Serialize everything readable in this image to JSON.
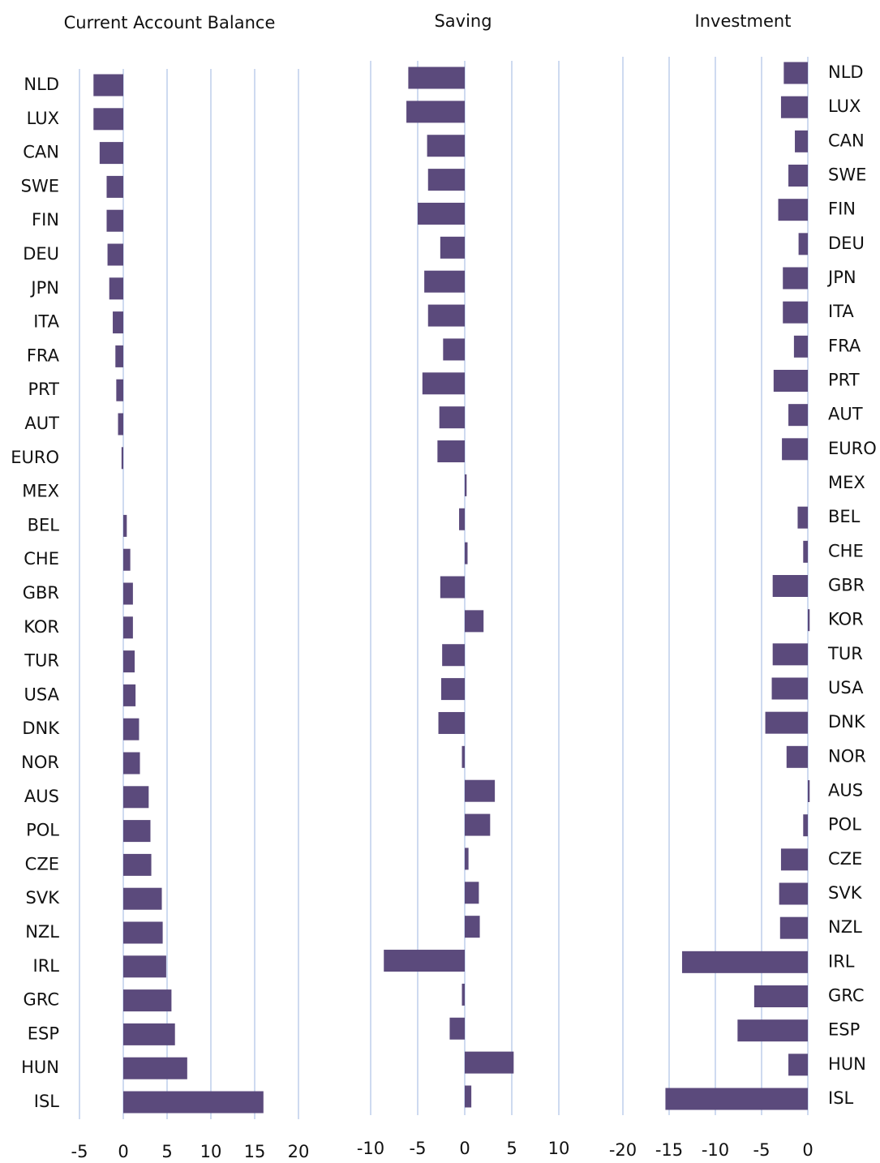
{
  "chart_data": [
    {
      "type": "bar",
      "title": "Current Account Balance",
      "categories": [
        "NLD",
        "LUX",
        "CAN",
        "SWE",
        "FIN",
        "DEU",
        "JPN",
        "ITA",
        "FRA",
        "PRT",
        "AUT",
        "EURO",
        "MEX",
        "BEL",
        "CHE",
        "GBR",
        "KOR",
        "TUR",
        "USA",
        "DNK",
        "NOR",
        "AUS",
        "POL",
        "CZE",
        "SVK",
        "NZL",
        "IRL",
        "GRC",
        "ESP",
        "HUN",
        "ISL"
      ],
      "values": [
        -3.4,
        -3.4,
        -2.7,
        -1.9,
        -1.9,
        -1.8,
        -1.6,
        -1.2,
        -0.9,
        -0.8,
        -0.6,
        -0.2,
        0,
        0.4,
        0.8,
        1.1,
        1.1,
        1.3,
        1.4,
        1.8,
        1.9,
        2.9,
        3.1,
        3.2,
        4.4,
        4.5,
        4.9,
        5.5,
        5.9,
        7.3,
        16.0
      ],
      "color": "#5b4a7c",
      "xlim": [
        -5,
        20
      ],
      "xticks": [
        -5,
        0,
        5,
        10,
        15,
        20
      ],
      "grid": true
    },
    {
      "type": "bar",
      "title": "Saving",
      "values": [
        -6.0,
        -6.2,
        -4.0,
        -3.9,
        -5.0,
        -2.6,
        -4.3,
        -3.9,
        -2.3,
        -4.5,
        -2.7,
        -2.9,
        0.2,
        -0.6,
        0.3,
        -2.6,
        2.0,
        -2.4,
        -2.5,
        -2.8,
        -0.3,
        3.2,
        2.7,
        0.4,
        1.5,
        1.6,
        -8.6,
        -0.3,
        -1.6,
        5.2,
        0.7
      ],
      "color": "#5b4a7c",
      "xlim": [
        -10,
        10
      ],
      "xticks": [
        -10,
        -5,
        0,
        5,
        10
      ],
      "grid": true
    },
    {
      "type": "bar",
      "title": "Investment",
      "categories": [
        "NLD",
        "LUX",
        "CAN",
        "SWE",
        "FIN",
        "DEU",
        "JPN",
        "ITA",
        "FRA",
        "PRT",
        "AUT",
        "EURO",
        "MEX",
        "BEL",
        "CHE",
        "GBR",
        "KOR",
        "TUR",
        "USA",
        "DNK",
        "NOR",
        "AUS",
        "POL",
        "CZE",
        "SVK",
        "NZL",
        "IRL",
        "GRC",
        "ESP",
        "HUN",
        "ISL"
      ],
      "values": [
        -2.6,
        -2.9,
        -1.4,
        -2.1,
        -3.2,
        -1.0,
        -2.7,
        -2.7,
        -1.5,
        -3.7,
        -2.1,
        -2.8,
        0,
        -1.1,
        -0.5,
        -3.8,
        0.2,
        -3.8,
        -3.9,
        -4.6,
        -2.3,
        0.2,
        -0.5,
        -2.9,
        -3.1,
        -3.0,
        -13.6,
        -5.8,
        -7.6,
        -2.1,
        -15.4
      ],
      "color": "#5b4a7c",
      "xlim": [
        -20,
        0
      ],
      "xticks": [
        -20,
        -15,
        -10,
        -5,
        0
      ],
      "grid": true
    }
  ]
}
